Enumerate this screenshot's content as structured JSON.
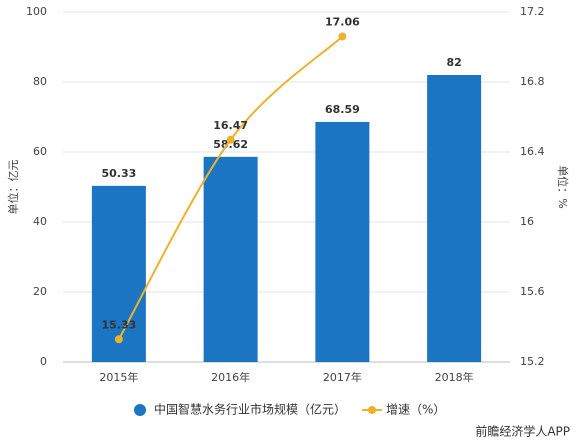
{
  "chart_data": {
    "type": "bar_line",
    "categories": [
      "2015年",
      "2016年",
      "2017年",
      "2018年"
    ],
    "series": [
      {
        "name": "中国智慧水务行业市场规模（亿元）",
        "type": "bar",
        "color": "#1b75c3",
        "values": [
          50.33,
          58.62,
          68.59,
          82
        ]
      },
      {
        "name": "增速（%）",
        "type": "line",
        "axis": "y2",
        "color": "#ecb22e",
        "values": [
          15.33,
          16.47,
          17.06,
          null
        ]
      }
    ],
    "ylabel": "单位：亿元",
    "y2label": "单位：%",
    "ylim": [
      0,
      100
    ],
    "yticks": [
      0,
      20,
      40,
      60,
      80,
      100
    ],
    "y2lim": [
      15.2,
      17.2
    ],
    "y2ticks": [
      15.2,
      15.6,
      16,
      16.4,
      16.8,
      17.2
    ],
    "legend": "bottom",
    "source": "前瞻经济学人APP"
  }
}
